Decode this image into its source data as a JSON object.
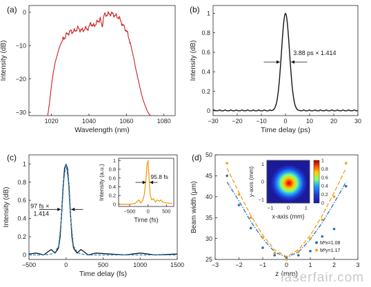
{
  "watermark": "laserfair.com",
  "chart_data": [
    {
      "panel_label": "(a)",
      "type": "line",
      "xlabel": "Wavelength (nm)",
      "ylabel": "Intensity (dB)",
      "xlim": [
        1008,
        1086
      ],
      "ylim": [
        -31,
        2
      ],
      "xticks": [
        1020,
        1040,
        1060,
        1080
      ],
      "yticks": [
        0,
        -10,
        -20,
        -30
      ],
      "series": [
        {
          "color": "#cc1f1f",
          "x": [
            1018,
            1019,
            1020,
            1021,
            1022,
            1023,
            1024,
            1025,
            1026,
            1027,
            1028,
            1030,
            1032,
            1034,
            1036,
            1038,
            1040,
            1041,
            1042,
            1044,
            1046,
            1047,
            1048,
            1050,
            1052,
            1054,
            1056,
            1058,
            1060,
            1061,
            1062,
            1063,
            1064,
            1065,
            1066,
            1067,
            1068,
            1069,
            1070,
            1071,
            1072,
            1073
          ],
          "y": [
            -31,
            -27,
            -22,
            -18,
            -15,
            -13,
            -11,
            -9.5,
            -8.3,
            -7.5,
            -6.8,
            -5.8,
            -5.8,
            -4.8,
            -5.5,
            -5.0,
            -4.8,
            -3.0,
            -4.3,
            -3.3,
            -2.0,
            -4.3,
            -1.0,
            -0.6,
            -0.4,
            -1.0,
            -1.6,
            -3.8,
            -5.5,
            -7.2,
            -9.0,
            -11.5,
            -14.0,
            -17.0,
            -19.5,
            -22.0,
            -24.5,
            -26.5,
            -28.0,
            -29.5,
            -30.5,
            -31
          ]
        }
      ]
    },
    {
      "panel_label": "(b)",
      "type": "line",
      "xlabel": "Time delay (ps)",
      "ylabel": "Intensity (dB)",
      "xlim": [
        -30,
        30
      ],
      "ylim": [
        -0.05,
        1.08
      ],
      "xticks": [
        -30,
        -20,
        -10,
        0,
        10,
        20,
        30
      ],
      "yticks": [
        0,
        0.2,
        0.4,
        0.6,
        0.8,
        1
      ],
      "annotation": "3.88 ps × 1.414",
      "series": [
        {
          "color": "#111111",
          "x": [
            -30,
            -10,
            -8,
            -6,
            -5,
            -4,
            -3,
            -2,
            -1,
            0,
            1,
            2,
            3,
            4,
            5,
            6,
            8,
            10,
            30
          ],
          "y": [
            0,
            0,
            0.01,
            0.02,
            0.05,
            0.12,
            0.25,
            0.48,
            0.8,
            1.0,
            0.8,
            0.48,
            0.25,
            0.12,
            0.05,
            0.02,
            0.01,
            0,
            0
          ]
        }
      ]
    },
    {
      "panel_label": "(c)",
      "type": "line",
      "xlabel": "Time delay (fs)",
      "ylabel": "Intensity (dB)",
      "xlim": [
        -500,
        1500
      ],
      "ylim": [
        -0.05,
        1.1
      ],
      "xticks": [
        -500,
        0,
        500,
        1000,
        1500
      ],
      "yticks": [
        0,
        0.2,
        0.4,
        0.6,
        0.8,
        1
      ],
      "annotation_line1": "97 fs ×",
      "annotation_line2": "1.414",
      "series": [
        {
          "color": "#111111",
          "x": [
            -500,
            -400,
            -300,
            -250,
            -200,
            -150,
            -120,
            -100,
            -80,
            -60,
            -40,
            -20,
            0,
            20,
            40,
            60,
            80,
            100,
            120,
            150,
            200,
            250,
            300,
            400,
            600,
            800,
            1000,
            1200,
            1500
          ],
          "y": [
            0.01,
            0.02,
            0.0,
            0.03,
            0.06,
            0.02,
            0.05,
            0.08,
            0.2,
            0.45,
            0.75,
            0.95,
            1.0,
            0.95,
            0.75,
            0.45,
            0.2,
            0.08,
            0.05,
            0.02,
            0.06,
            0.03,
            0.0,
            0.02,
            0.01,
            0.0,
            0.02,
            0.0,
            0.01
          ]
        },
        {
          "color": "#2f8fd0",
          "x": [
            -500,
            -300,
            -200,
            -150,
            -100,
            -60,
            -30,
            0,
            30,
            60,
            100,
            150,
            200,
            300,
            1500
          ],
          "y": [
            0.0,
            0.0,
            0.01,
            0.03,
            0.1,
            0.42,
            0.82,
            1.0,
            0.82,
            0.42,
            0.1,
            0.03,
            0.01,
            0.0,
            0.0
          ]
        }
      ]
    },
    {
      "panel_label": "(c) inset",
      "type": "line",
      "xlabel": "Time (fs)",
      "ylabel": "Intensity (a.u.)",
      "xlim": [
        -800,
        700
      ],
      "ylim": [
        -0.05,
        1.05
      ],
      "xticks": [
        -500,
        0,
        500
      ],
      "yticks": [
        0,
        0.2,
        0.4,
        0.6,
        0.8,
        1
      ],
      "annotation": "95.8 fs",
      "series": [
        {
          "color": "#f39c12",
          "x": [
            -750,
            -500,
            -350,
            -300,
            -250,
            -200,
            -150,
            -100,
            -60,
            -30,
            0,
            30,
            60,
            100,
            150,
            200,
            250,
            300,
            350,
            400,
            500,
            650
          ],
          "y": [
            0.0,
            0.0,
            0.02,
            0.06,
            0.1,
            0.03,
            0.08,
            0.22,
            0.55,
            0.88,
            1.0,
            0.55,
            0.2,
            0.1,
            0.13,
            0.05,
            0.1,
            0.07,
            0.1,
            0.05,
            0.03,
            0.02
          ]
        }
      ]
    },
    {
      "panel_label": "(d)",
      "type": "scatter",
      "xlabel": "z (mm)",
      "ylabel": "Beam width (μm)",
      "xlim": [
        -3,
        3
      ],
      "ylim": [
        25,
        50
      ],
      "xticks": [
        -3,
        -2,
        -1,
        0,
        1,
        2,
        3
      ],
      "yticks": [
        25,
        30,
        35,
        40,
        45,
        50
      ],
      "series": [
        {
          "name": "M²x=1.08",
          "color": "#2a6fb5",
          "points_x": [
            -2.5,
            -2.0,
            -1.5,
            -1.0,
            -0.5,
            0,
            0.5,
            1.0,
            1.5,
            2.0,
            2.5
          ],
          "points_y": [
            45.0,
            38.0,
            32.5,
            27.8,
            26.0,
            25.2,
            26.0,
            27.0,
            30.5,
            32.3,
            42.5
          ],
          "fit_x": [
            -2.5,
            -2.0,
            -1.5,
            -1.0,
            -0.5,
            0,
            0.5,
            1.0,
            1.5,
            2.0,
            2.5
          ],
          "fit_y": [
            43.5,
            39.0,
            34.0,
            30.0,
            26.8,
            25.5,
            26.8,
            29.8,
            33.8,
            38.5,
            43.5
          ]
        },
        {
          "name": "M²y=1.17",
          "color": "#f39c12",
          "points_x": [
            -2.5,
            -2.0,
            -1.5,
            -1.0,
            -0.5,
            0,
            0.5,
            1.0,
            1.5,
            2.0,
            2.5
          ],
          "points_y": [
            48.0,
            40.5,
            35.0,
            30.2,
            26.5,
            25.0,
            26.8,
            30.0,
            34.5,
            40.0,
            48.0
          ],
          "fit_x": [
            -2.5,
            -2.0,
            -1.5,
            -1.0,
            -0.5,
            0,
            0.5,
            1.0,
            1.5,
            2.0,
            2.5
          ],
          "fit_y": [
            46.8,
            41.0,
            35.5,
            30.8,
            27.3,
            25.7,
            27.3,
            30.8,
            35.5,
            41.0,
            46.8
          ]
        }
      ]
    },
    {
      "panel_label": "(d) inset",
      "type": "heatmap",
      "xlabel": "x-axis (mm)",
      "ylabel": "y-axis (mm)",
      "xlim": [
        -1.2,
        1.2
      ],
      "ylim": [
        -1.2,
        1.2
      ],
      "xticks": [
        -1,
        0,
        1
      ],
      "yticks": [
        -1,
        0,
        1
      ],
      "colorbar_ticks": [
        0,
        0.2,
        0.4,
        0.6,
        0.8,
        1
      ]
    }
  ]
}
